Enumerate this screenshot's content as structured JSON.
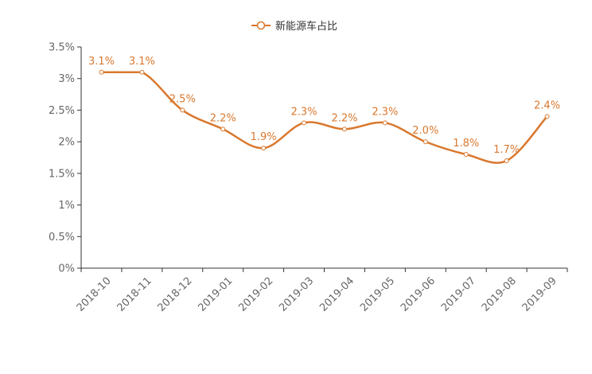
{
  "chart_data": {
    "type": "line",
    "title": "",
    "xlabel": "",
    "ylabel": "",
    "categories": [
      "2018-10",
      "2018-11",
      "2018-12",
      "2019-01",
      "2019-02",
      "2019-03",
      "2019-04",
      "2019-05",
      "2019-06",
      "2019-07",
      "2019-08",
      "2019-09"
    ],
    "series": [
      {
        "name": "新能源车占比",
        "values": [
          3.1,
          3.1,
          2.5,
          2.2,
          1.9,
          2.3,
          2.2,
          2.3,
          2.0,
          1.8,
          1.7,
          2.4
        ],
        "labels": [
          "3.1%",
          "3.1%",
          "2.5%",
          "2.2%",
          "1.9%",
          "2.3%",
          "2.2%",
          "2.3%",
          "2.0%",
          "1.8%",
          "1.7%",
          "2.4%"
        ],
        "color": "#d9782e"
      }
    ],
    "ylim": [
      0,
      3.5
    ],
    "yticks": [
      0,
      0.5,
      1,
      1.5,
      2,
      2.5,
      3,
      3.5
    ],
    "ytick_labels": [
      "0%",
      "0.5%",
      "1%",
      "1.5%",
      "2%",
      "2.5%",
      "3%",
      "3.5%"
    ],
    "smooth": true,
    "grid": false,
    "legend_position": "top-center"
  },
  "colors": {
    "series": "#d9782e",
    "axis": "#333333",
    "tick_text": "#666666",
    "legend_text": "#333333"
  }
}
